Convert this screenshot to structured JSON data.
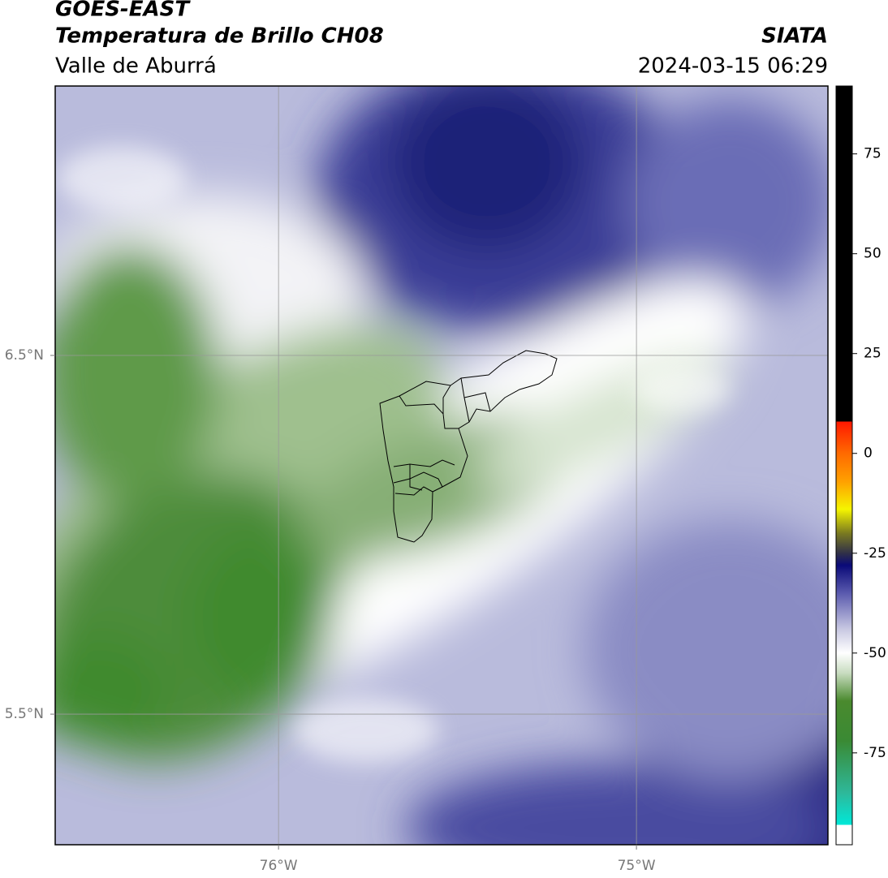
{
  "header": {
    "satellite": "GOES-EAST",
    "product": "Temperatura de Brillo CH08",
    "region": "Valle de Aburrá",
    "agency": "SIATA",
    "timestamp": "2024-03-15 06:29"
  },
  "map": {
    "xlim": [
      -76.624,
      -74.465
    ],
    "ylim": [
      5.136,
      7.251
    ],
    "xticks": [
      {
        "value": -76,
        "label": "76°W"
      },
      {
        "value": -75,
        "label": "75°W"
      }
    ],
    "yticks": [
      {
        "value": 6.5,
        "label": "6.5°N"
      },
      {
        "value": 5.5,
        "label": "5.5°N"
      }
    ],
    "grid": true
  },
  "colorbar": {
    "lim": [
      -98,
      92
    ],
    "ticks": [
      75,
      50,
      25,
      0,
      -25,
      -50,
      -75
    ],
    "stops": [
      {
        "value": -98,
        "color": "#ffffff"
      },
      {
        "value": -93,
        "color": "#ffffff"
      },
      {
        "value": -93,
        "color": "#00e8d8"
      },
      {
        "value": -85,
        "color": "#2eb89a"
      },
      {
        "value": -72,
        "color": "#3a8a34"
      },
      {
        "value": -62,
        "color": "#4a8a2e"
      },
      {
        "value": -55,
        "color": "#c8dcc0"
      },
      {
        "value": -50,
        "color": "#ffffff"
      },
      {
        "value": -44,
        "color": "#c8c8e2"
      },
      {
        "value": -35,
        "color": "#5a5aae"
      },
      {
        "value": -28,
        "color": "#0a0a78"
      },
      {
        "value": -25,
        "color": "#303048"
      },
      {
        "value": -20,
        "color": "#7a7a20"
      },
      {
        "value": -14,
        "color": "#f5f500"
      },
      {
        "value": -7,
        "color": "#ffa000"
      },
      {
        "value": 0,
        "color": "#ff6a00"
      },
      {
        "value": 8,
        "color": "#ff1800"
      },
      {
        "value": 8,
        "color": "#000000"
      },
      {
        "value": 92,
        "color": "#000000"
      }
    ]
  }
}
